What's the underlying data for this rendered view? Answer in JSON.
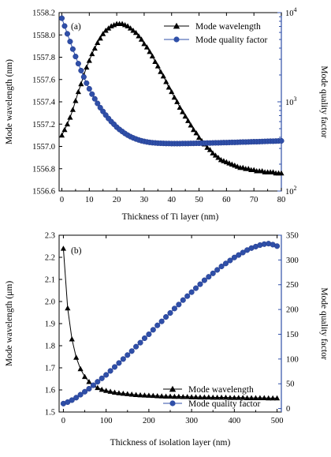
{
  "chart_data": [
    {
      "type": "line",
      "panel_label": "(a)",
      "xlabel": "Thickness of Ti layer (nm)",
      "ylabel_left": "Mode wavelength (nm)",
      "ylabel_right": "Mode quality factor",
      "xlim": [
        -1,
        80
      ],
      "ylim_left": [
        1556.6,
        1558.2
      ],
      "ylim_right": [
        100,
        10000
      ],
      "right_scale": "log",
      "grid": false,
      "legend_position": "top-right",
      "x_ticks": [
        "0",
        "10",
        "20",
        "30",
        "40",
        "50",
        "60",
        "70",
        "80"
      ],
      "y_left_ticks": [
        "1556.6",
        "1556.8",
        "1557.0",
        "1557.2",
        "1557.4",
        "1557.6",
        "1557.8",
        "1558.0",
        "1558.2"
      ],
      "y_right_ticks": [
        {
          "base": "10",
          "exp": "2"
        },
        {
          "base": "10",
          "exp": "3"
        },
        {
          "base": "10",
          "exp": "4"
        }
      ],
      "colors": {
        "wavelength": "#000000",
        "quality": "#2f4fa8"
      },
      "series": [
        {
          "name": "Mode wavelength",
          "marker": "triangle",
          "axis": "left",
          "x": [
            0,
            1,
            2,
            3,
            4,
            5,
            6,
            7,
            8,
            9,
            10,
            11,
            12,
            13,
            14,
            15,
            16,
            17,
            18,
            19,
            20,
            21,
            22,
            23,
            24,
            25,
            26,
            27,
            28,
            29,
            30,
            31,
            32,
            33,
            34,
            35,
            36,
            37,
            38,
            39,
            40,
            41,
            42,
            43,
            44,
            45,
            46,
            47,
            48,
            49,
            50,
            51,
            52,
            53,
            54,
            55,
            56,
            57,
            58,
            59,
            60,
            61,
            62,
            63,
            64,
            65,
            66,
            67,
            68,
            69,
            70,
            71,
            72,
            73,
            74,
            75,
            76,
            77,
            78,
            79,
            80
          ],
          "y": [
            1557.1,
            1557.15,
            1557.2,
            1557.26,
            1557.33,
            1557.41,
            1557.49,
            1557.56,
            1557.64,
            1557.71,
            1557.77,
            1557.83,
            1557.88,
            1557.93,
            1557.97,
            1558.01,
            1558.04,
            1558.06,
            1558.08,
            1558.09,
            1558.1,
            1558.1,
            1558.1,
            1558.09,
            1558.08,
            1558.06,
            1558.04,
            1558.02,
            1557.99,
            1557.96,
            1557.92,
            1557.89,
            1557.85,
            1557.81,
            1557.76,
            1557.72,
            1557.67,
            1557.63,
            1557.58,
            1557.53,
            1557.49,
            1557.44,
            1557.4,
            1557.35,
            1557.31,
            1557.27,
            1557.23,
            1557.19,
            1557.15,
            1557.12,
            1557.08,
            1557.05,
            1557.02,
            1556.99,
            1556.97,
            1556.94,
            1556.92,
            1556.9,
            1556.88,
            1556.87,
            1556.86,
            1556.85,
            1556.84,
            1556.83,
            1556.82,
            1556.81,
            1556.81,
            1556.8,
            1556.8,
            1556.79,
            1556.79,
            1556.78,
            1556.78,
            1556.78,
            1556.77,
            1556.77,
            1556.77,
            1556.77,
            1556.76,
            1556.76,
            1556.76
          ]
        },
        {
          "name": "Mode quality factor",
          "marker": "circle",
          "axis": "right",
          "x": [
            0,
            1,
            2,
            3,
            4,
            5,
            6,
            7,
            8,
            9,
            10,
            11,
            12,
            13,
            14,
            15,
            16,
            17,
            18,
            19,
            20,
            21,
            22,
            23,
            24,
            25,
            26,
            27,
            28,
            29,
            30,
            31,
            32,
            33,
            34,
            35,
            36,
            37,
            38,
            39,
            40,
            41,
            42,
            43,
            44,
            45,
            46,
            47,
            48,
            49,
            50,
            51,
            52,
            53,
            54,
            55,
            56,
            57,
            58,
            59,
            60,
            61,
            62,
            63,
            64,
            65,
            66,
            67,
            68,
            69,
            70,
            71,
            72,
            73,
            74,
            75,
            76,
            77,
            78,
            79,
            80
          ],
          "y": [
            8650,
            7080,
            5790,
            4740,
            3900,
            3220,
            2680,
            2240,
            1900,
            1620,
            1400,
            1220,
            1080,
            960,
            860,
            780,
            710,
            650,
            600,
            560,
            520,
            490,
            465,
            442,
            423,
            407,
            394,
            383,
            374,
            366,
            360,
            355,
            351,
            348,
            346,
            344,
            343,
            342,
            341,
            341,
            340,
            340,
            340,
            340,
            341,
            341,
            341,
            342,
            342,
            343,
            343,
            344,
            344,
            345,
            345,
            346,
            347,
            347,
            348,
            349,
            349,
            350,
            351,
            351,
            352,
            353,
            354,
            354,
            355,
            356,
            357,
            357,
            358,
            359,
            360,
            361,
            362,
            362,
            363,
            364,
            365
          ]
        }
      ]
    },
    {
      "type": "line",
      "panel_label": "(b)",
      "xlabel": "Thickness of isolation layer (nm)",
      "ylabel_left": "Mode wavelength (μm)",
      "ylabel_right": "Mode quality factor",
      "xlim": [
        -10,
        510
      ],
      "ylim_left": [
        1.5,
        2.3
      ],
      "ylim_right": [
        -7,
        350
      ],
      "right_scale": "linear",
      "grid": false,
      "legend_position": "bottom-right",
      "x_ticks": [
        "0",
        "100",
        "200",
        "300",
        "400",
        "500"
      ],
      "y_left_ticks": [
        "1.5",
        "1.6",
        "1.7",
        "1.8",
        "1.9",
        "2.0",
        "2.1",
        "2.2",
        "2.3"
      ],
      "y_right_ticks": [
        "0",
        "50",
        "100",
        "150",
        "200",
        "250",
        "300",
        "350"
      ],
      "colors": {
        "wavelength": "#000000",
        "quality": "#2f4fa8"
      },
      "series": [
        {
          "name": "Mode wavelength",
          "marker": "triangle",
          "axis": "left",
          "x": [
            0,
            10,
            20,
            30,
            40,
            50,
            60,
            70,
            80,
            90,
            100,
            110,
            120,
            130,
            140,
            150,
            160,
            170,
            180,
            190,
            200,
            210,
            220,
            230,
            240,
            250,
            260,
            270,
            280,
            290,
            300,
            310,
            320,
            330,
            340,
            350,
            360,
            370,
            380,
            390,
            400,
            410,
            420,
            430,
            440,
            450,
            460,
            470,
            480,
            490,
            500
          ],
          "y": [
            2.24,
            1.97,
            1.83,
            1.747,
            1.695,
            1.66,
            1.637,
            1.621,
            1.61,
            1.602,
            1.597,
            1.593,
            1.589,
            1.586,
            1.584,
            1.582,
            1.58,
            1.578,
            1.577,
            1.576,
            1.575,
            1.574,
            1.573,
            1.572,
            1.571,
            1.571,
            1.57,
            1.57,
            1.569,
            1.569,
            1.568,
            1.568,
            1.567,
            1.567,
            1.567,
            1.566,
            1.566,
            1.566,
            1.566,
            1.565,
            1.565,
            1.565,
            1.565,
            1.564,
            1.564,
            1.564,
            1.564,
            1.564,
            1.563,
            1.563,
            1.563
          ]
        },
        {
          "name": "Mode quality factor",
          "marker": "circle",
          "axis": "right",
          "x": [
            0,
            10,
            20,
            30,
            40,
            50,
            60,
            70,
            80,
            90,
            100,
            110,
            120,
            130,
            140,
            150,
            160,
            170,
            180,
            190,
            200,
            210,
            220,
            230,
            240,
            250,
            260,
            270,
            280,
            290,
            300,
            310,
            320,
            330,
            340,
            350,
            360,
            370,
            380,
            390,
            400,
            410,
            420,
            430,
            440,
            450,
            460,
            470,
            480,
            490,
            500
          ],
          "y": [
            10,
            13,
            17,
            22,
            28,
            34,
            40,
            47,
            54,
            61,
            68,
            76,
            84,
            92,
            100,
            108,
            116,
            125,
            133,
            142,
            150,
            159,
            168,
            176,
            185,
            193,
            202,
            210,
            219,
            227,
            235,
            243,
            251,
            259,
            266,
            273,
            280,
            287,
            293,
            299,
            305,
            310,
            315,
            320,
            324,
            327,
            330,
            332,
            333,
            331,
            328
          ]
        }
      ]
    }
  ]
}
